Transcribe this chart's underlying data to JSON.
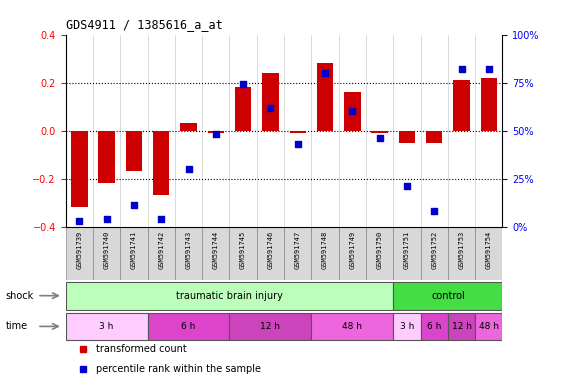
{
  "title": "GDS4911 / 1385616_a_at",
  "samples": [
    "GSM591739",
    "GSM591740",
    "GSM591741",
    "GSM591742",
    "GSM591743",
    "GSM591744",
    "GSM591745",
    "GSM591746",
    "GSM591747",
    "GSM591748",
    "GSM591749",
    "GSM591750",
    "GSM591751",
    "GSM591752",
    "GSM591753",
    "GSM591754"
  ],
  "bar_values": [
    -0.32,
    -0.22,
    -0.17,
    -0.27,
    0.03,
    -0.01,
    0.18,
    0.24,
    -0.01,
    0.28,
    0.16,
    -0.01,
    -0.05,
    -0.05,
    0.21,
    0.22
  ],
  "dot_values": [
    3,
    4,
    11,
    4,
    30,
    48,
    74,
    62,
    43,
    80,
    60,
    46,
    21,
    8,
    82,
    82
  ],
  "bar_color": "#cc0000",
  "dot_color": "#0000cc",
  "ylim_left": [
    -0.4,
    0.4
  ],
  "ylim_right": [
    0,
    100
  ],
  "yticks_left": [
    -0.4,
    -0.2,
    0.0,
    0.2,
    0.4
  ],
  "yticks_right": [
    0,
    25,
    50,
    75,
    100
  ],
  "ytick_labels_right": [
    "0%",
    "25%",
    "50%",
    "75%",
    "100%"
  ],
  "dotted_lines": [
    -0.2,
    0.0,
    0.2
  ],
  "shock_groups": [
    {
      "label": "traumatic brain injury",
      "start": 0,
      "end": 12,
      "color": "#bbffbb"
    },
    {
      "label": "control",
      "start": 12,
      "end": 16,
      "color": "#44dd44"
    }
  ],
  "time_groups": [
    {
      "label": "3 h",
      "start": 0,
      "end": 3,
      "color": "#ffccff"
    },
    {
      "label": "6 h",
      "start": 3,
      "end": 6,
      "color": "#dd44cc"
    },
    {
      "label": "12 h",
      "start": 6,
      "end": 9,
      "color": "#cc44bb"
    },
    {
      "label": "48 h",
      "start": 9,
      "end": 12,
      "color": "#ee66dd"
    },
    {
      "label": "3 h",
      "start": 12,
      "end": 13,
      "color": "#ffccff"
    },
    {
      "label": "6 h",
      "start": 13,
      "end": 14,
      "color": "#dd44cc"
    },
    {
      "label": "12 h",
      "start": 14,
      "end": 15,
      "color": "#cc44bb"
    },
    {
      "label": "48 h",
      "start": 15,
      "end": 16,
      "color": "#ee66dd"
    }
  ],
  "legend_items": [
    {
      "label": "transformed count",
      "color": "#cc0000"
    },
    {
      "label": "percentile rank within the sample",
      "color": "#0000cc"
    }
  ],
  "bar_width": 0.6,
  "dot_size": 16
}
